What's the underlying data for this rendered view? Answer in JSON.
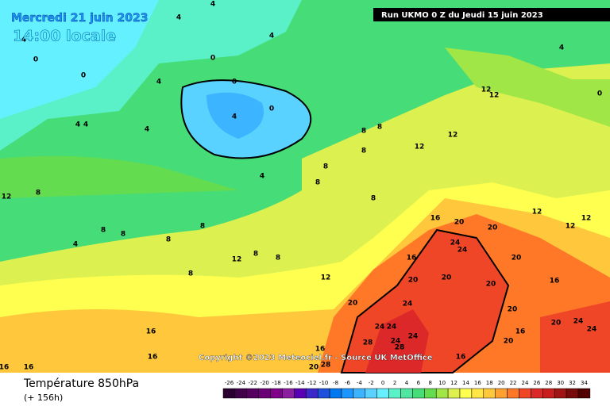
{
  "header": {
    "title": "Mercredi 21 juin 2023",
    "subtitle": "14:00 locale",
    "run": "Run UKMO 0 Z du Jeudi 15 juin 2023"
  },
  "map": {
    "copyright": "Copyright ©2023 Meteociel.fr - Source UK MetOffice",
    "contour_labels": [
      0,
      0,
      0,
      0,
      0,
      4,
      4,
      4,
      4,
      4,
      4,
      4,
      4,
      4,
      4,
      4,
      4,
      0,
      12,
      12,
      12,
      12,
      8,
      8,
      8,
      8,
      8,
      8,
      8,
      12,
      8,
      8,
      8,
      8,
      12,
      8,
      8,
      8,
      12,
      16,
      20,
      20,
      24,
      24,
      16,
      20,
      20,
      20,
      20,
      12,
      12,
      12,
      16,
      20,
      24,
      24,
      24,
      24,
      24,
      28,
      28,
      20,
      20,
      24,
      24,
      16,
      20,
      16,
      16,
      28,
      20,
      16,
      16,
      16,
      16
    ]
  },
  "footer": {
    "variable": "Température 850hPa",
    "lead": "(+ 156h)"
  },
  "legend": {
    "items": [
      {
        "value": -26,
        "color": "#2b0030"
      },
      {
        "value": -24,
        "color": "#40004a"
      },
      {
        "value": -22,
        "color": "#55005f"
      },
      {
        "value": -20,
        "color": "#6a0075"
      },
      {
        "value": -18,
        "color": "#80008c"
      },
      {
        "value": -16,
        "color": "#8c1fa0"
      },
      {
        "value": -14,
        "color": "#5a00b4"
      },
      {
        "value": -12,
        "color": "#3c28c8"
      },
      {
        "value": -10,
        "color": "#1e50dc"
      },
      {
        "value": -8,
        "color": "#0078f0"
      },
      {
        "value": -6,
        "color": "#1e96ff"
      },
      {
        "value": -4,
        "color": "#3cb4ff"
      },
      {
        "value": -2,
        "color": "#5ad2ff"
      },
      {
        "value": 0,
        "color": "#64f0ff"
      },
      {
        "value": 2,
        "color": "#5af0c8"
      },
      {
        "value": 4,
        "color": "#50e6a0"
      },
      {
        "value": 6,
        "color": "#46dc78"
      },
      {
        "value": 8,
        "color": "#64dc50"
      },
      {
        "value": 10,
        "color": "#a0e646"
      },
      {
        "value": 12,
        "color": "#dcf050"
      },
      {
        "value": 14,
        "color": "#ffff50"
      },
      {
        "value": 16,
        "color": "#ffe646"
      },
      {
        "value": 18,
        "color": "#ffc83c"
      },
      {
        "value": 20,
        "color": "#ffa032"
      },
      {
        "value": 22,
        "color": "#ff7828"
      },
      {
        "value": 24,
        "color": "#f04628"
      },
      {
        "value": 26,
        "color": "#dc2828"
      },
      {
        "value": 28,
        "color": "#c81e1e"
      },
      {
        "value": 30,
        "color": "#a01414"
      },
      {
        "value": 32,
        "color": "#780a0a"
      },
      {
        "value": 34,
        "color": "#500000"
      }
    ]
  }
}
